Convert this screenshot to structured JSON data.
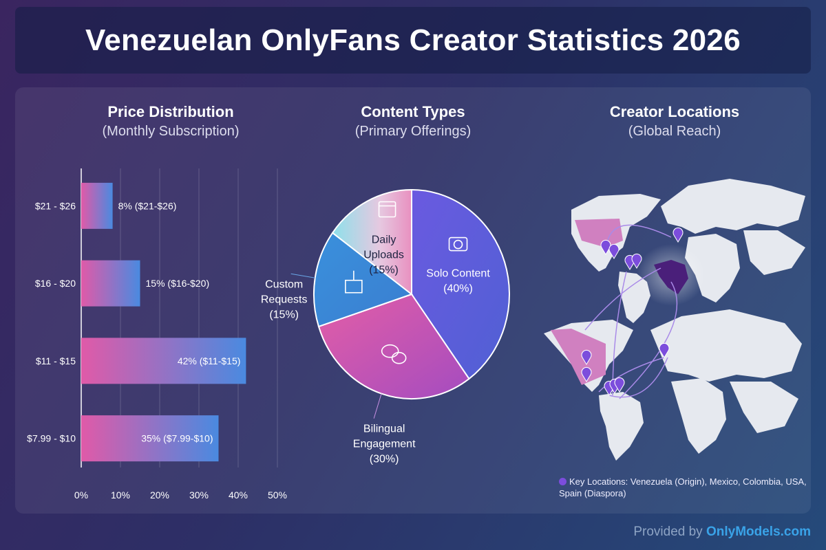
{
  "title": "Venezuelan OnlyFans Creator Statistics 2026",
  "colors": {
    "bar_start": "#e05aa8",
    "bar_end": "#4a8ae0",
    "solo": "#5c5ddc",
    "bilingual": "#c055b8",
    "custom": "#3d8ad8",
    "daily": "#c8d6ea",
    "map_land": "#e6e9ef",
    "venezuela": "#4a1f7a",
    "pin": "#7c4ddc"
  },
  "chart_data": [
    {
      "type": "bar",
      "orientation": "horizontal",
      "title": "Price Distribution",
      "subtitle": "(Monthly Subscription)",
      "categories": [
        "$21 - $26",
        "$16 - $20",
        "$11 - $15",
        "$7.99 - $10"
      ],
      "values": [
        8,
        15,
        42,
        35
      ],
      "data_labels": [
        "8% ($21-$26)",
        "15% ($16-$20)",
        "42% ($11-$15)",
        "35% ($7.99-$10)"
      ],
      "xlim": [
        0,
        50
      ],
      "xticks": [
        "0%",
        "10%",
        "20%",
        "30%",
        "40%",
        "50%"
      ],
      "grid": true
    },
    {
      "type": "pie",
      "title": "Content Types",
      "subtitle": "(Primary Offerings)",
      "slices": [
        {
          "label": "Solo Content",
          "pct": "(40%)",
          "value": 40,
          "icon": "camera-icon"
        },
        {
          "label": "Bilingual Engagement",
          "line1": "Bilingual",
          "line2": "Engagement",
          "pct": "(30%)",
          "value": 30,
          "icon": "chat-bubbles-icon"
        },
        {
          "label": "Custom Requests",
          "line1": "Custom",
          "line2": "Requests",
          "pct": "(15%)",
          "value": 15,
          "icon": "package-icon"
        },
        {
          "label": "Daily Uploads",
          "line1": "Daily",
          "line2": "Uploads",
          "pct": "(15%)",
          "value": 15,
          "icon": "calendar-icon"
        }
      ]
    }
  ],
  "map": {
    "title": "Creator Locations",
    "subtitle": "(Global Reach)",
    "legend": "Key Locations: Venezuela (Origin), Mexico, Colombia, USA, Spain (Diaspora)",
    "icon": "map-pin-icon"
  },
  "footer": {
    "prefix": "Provided by ",
    "brand": "OnlyModels.com"
  }
}
